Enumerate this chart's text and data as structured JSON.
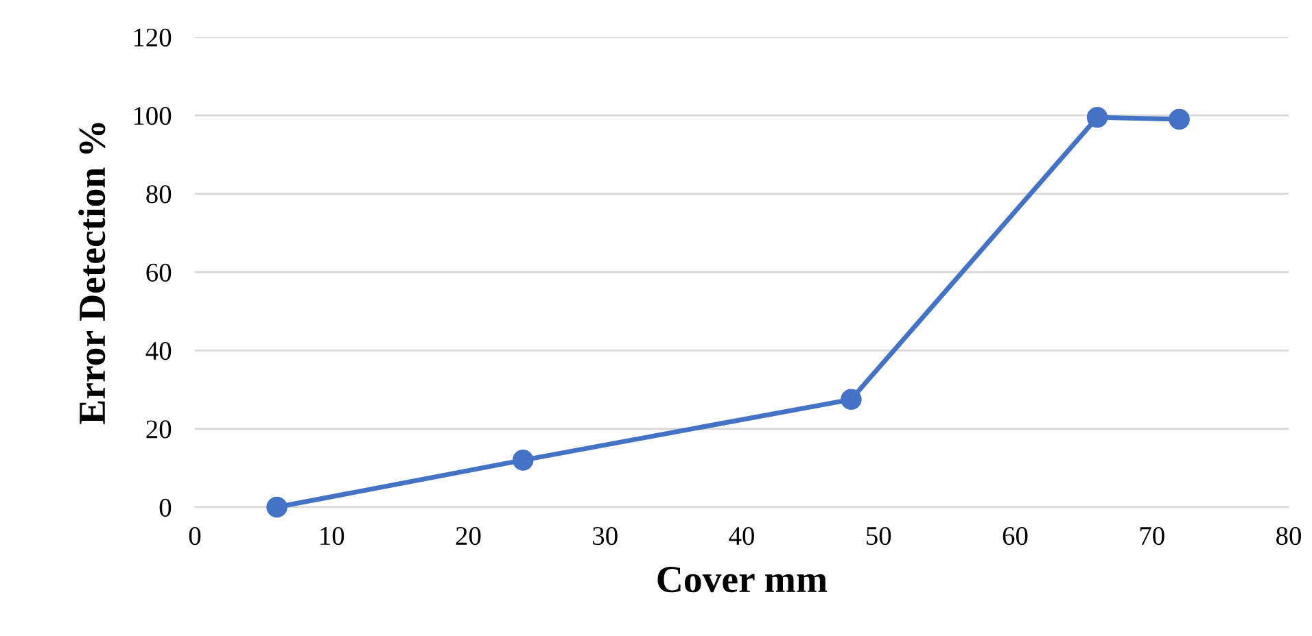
{
  "chart_data": {
    "type": "line",
    "xlabel": "Cover mm",
    "ylabel": "Error Detection %",
    "x": [
      6,
      24,
      48,
      66,
      72
    ],
    "series": [
      {
        "color": "#4472c4",
        "values": [
          0,
          12,
          27.5,
          99.5,
          99
        ]
      }
    ],
    "xlim": [
      0,
      80
    ],
    "xticks": [
      0,
      10,
      20,
      30,
      40,
      50,
      60,
      70,
      80
    ],
    "ylim": [
      0,
      120
    ],
    "yticks": [
      0,
      20,
      40,
      60,
      80,
      100,
      120
    ],
    "grid": "y",
    "marker": "circle",
    "line_style": "solid"
  }
}
